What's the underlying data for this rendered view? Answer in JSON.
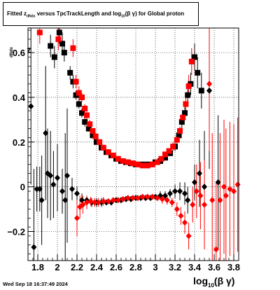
{
  "title": {
    "prefix": "Fitted  z",
    "sub1": "dNdx",
    "middle": "  versus  TpcTrackLength and log",
    "sub2": "10",
    "suffix": "(β  γ) for Global proton"
  },
  "timestamp": "Wed Sep 18 16:37:49 2024",
  "axes": {
    "ylabel_main": "z",
    "ylabel_sub": "dNdx",
    "xlabel_main": "log",
    "xlabel_sub": "10",
    "xlabel_suffix": "(β γ)"
  },
  "chart_data": {
    "type": "scatter",
    "xlim": [
      1.7,
      3.85
    ],
    "ylim": [
      -0.33,
      0.71
    ],
    "x_ticks": [
      1.8,
      2.0,
      2.2,
      2.4,
      2.6,
      2.8,
      3.0,
      3.2,
      3.4,
      3.6,
      3.8
    ],
    "x_tick_labels": [
      "1.8",
      "2",
      "2.2",
      "2.4",
      "2.6",
      "2.8",
      "3",
      "3.2",
      "3.4",
      "3.6",
      "3.8"
    ],
    "y_ticks": [
      -0.2,
      0,
      0.2,
      0.4,
      0.6
    ],
    "y_tick_labels": [
      "−0.2",
      "0",
      "0.2",
      "0.4",
      "0.6"
    ],
    "grid": true,
    "series": [
      {
        "marker": "square",
        "color": "#000000",
        "points": [
          [
            1.93,
            0.63,
            0.05
          ],
          [
            1.97,
            0.58,
            0.05
          ],
          [
            2.02,
            0.69,
            0.05
          ],
          [
            2.05,
            0.64,
            0.05
          ],
          [
            2.07,
            0.6,
            0.04
          ],
          [
            2.13,
            0.51,
            0.03
          ],
          [
            2.16,
            0.47,
            0.03
          ],
          [
            2.19,
            0.41,
            0.02
          ],
          [
            2.22,
            0.37,
            0.02
          ],
          [
            2.25,
            0.33,
            0.02
          ],
          [
            2.28,
            0.29,
            0.02
          ],
          [
            2.32,
            0.26,
            0.01
          ],
          [
            2.36,
            0.23,
            0.01
          ],
          [
            2.4,
            0.2,
            0.01
          ],
          [
            2.45,
            0.175,
            0.01
          ],
          [
            2.5,
            0.155,
            0.01
          ],
          [
            2.55,
            0.14,
            0.01
          ],
          [
            2.6,
            0.125,
            0.01
          ],
          [
            2.65,
            0.115,
            0.01
          ],
          [
            2.7,
            0.11,
            0.01
          ],
          [
            2.75,
            0.105,
            0.01
          ],
          [
            2.8,
            0.1,
            0.01
          ],
          [
            2.85,
            0.1,
            0.01
          ],
          [
            2.9,
            0.1,
            0.01
          ],
          [
            2.95,
            0.1,
            0.01
          ],
          [
            3.0,
            0.11,
            0.01
          ],
          [
            3.05,
            0.115,
            0.01
          ],
          [
            3.1,
            0.13,
            0.01
          ],
          [
            3.15,
            0.15,
            0.01
          ],
          [
            3.2,
            0.18,
            0.02
          ],
          [
            3.24,
            0.23,
            0.02
          ],
          [
            3.27,
            0.29,
            0.03
          ],
          [
            3.3,
            0.33,
            0.03
          ],
          [
            3.33,
            0.41,
            0.04
          ],
          [
            3.36,
            0.46,
            0.05
          ],
          [
            3.4,
            0.58,
            0.06
          ],
          [
            3.43,
            0.51,
            0.07
          ],
          [
            3.47,
            0.43,
            0.08
          ]
        ]
      },
      {
        "marker": "square",
        "color": "#ff0000",
        "points": [
          [
            1.82,
            0.69,
            0.05
          ],
          [
            2.01,
            0.66,
            0.05
          ],
          [
            2.16,
            0.62,
            0.04
          ],
          [
            2.19,
            0.47,
            0.03
          ],
          [
            2.22,
            0.42,
            0.03
          ],
          [
            2.25,
            0.4,
            0.02
          ],
          [
            2.28,
            0.35,
            0.02
          ],
          [
            2.3,
            0.32,
            0.02
          ],
          [
            2.33,
            0.28,
            0.02
          ],
          [
            2.36,
            0.25,
            0.01
          ],
          [
            2.39,
            0.225,
            0.01
          ],
          [
            2.43,
            0.2,
            0.01
          ],
          [
            2.47,
            0.175,
            0.01
          ],
          [
            2.52,
            0.155,
            0.01
          ],
          [
            2.57,
            0.14,
            0.01
          ],
          [
            2.62,
            0.125,
            0.01
          ],
          [
            2.67,
            0.115,
            0.01
          ],
          [
            2.72,
            0.11,
            0.01
          ],
          [
            2.77,
            0.105,
            0.01
          ],
          [
            2.82,
            0.1,
            0.01
          ],
          [
            2.87,
            0.095,
            0.01
          ],
          [
            2.92,
            0.095,
            0.01
          ],
          [
            2.97,
            0.1,
            0.01
          ],
          [
            3.02,
            0.11,
            0.01
          ],
          [
            3.06,
            0.125,
            0.01
          ],
          [
            3.1,
            0.145,
            0.01
          ],
          [
            3.14,
            0.16,
            0.01
          ],
          [
            3.18,
            0.18,
            0.02
          ],
          [
            3.22,
            0.21,
            0.02
          ],
          [
            3.25,
            0.25,
            0.02
          ],
          [
            3.28,
            0.31,
            0.03
          ],
          [
            3.31,
            0.37,
            0.04
          ],
          [
            3.34,
            0.45,
            0.05
          ],
          [
            3.37,
            0.56,
            0.06
          ]
        ]
      },
      {
        "marker": "diamond",
        "color": "#000000",
        "points": [
          [
            1.73,
            0.36,
            0.35
          ],
          [
            1.76,
            -0.27,
            0.35
          ],
          [
            1.79,
            -0.01,
            0.1
          ],
          [
            1.82,
            -0.01,
            0.1
          ],
          [
            1.84,
            -0.06,
            0.2
          ],
          [
            1.88,
            0.24,
            0.3
          ],
          [
            1.9,
            0.06,
            0.2
          ],
          [
            1.93,
            0.05,
            0.2
          ],
          [
            1.96,
            0.01,
            0.15
          ],
          [
            2.0,
            0.04,
            0.15
          ],
          [
            2.05,
            -0.02,
            0.1
          ],
          [
            2.08,
            -0.06,
            0.3
          ],
          [
            2.1,
            0.05,
            0.3
          ],
          [
            2.15,
            -0.01,
            0.05
          ],
          [
            2.2,
            -0.03,
            0.03
          ],
          [
            2.25,
            -0.06,
            0.03
          ],
          [
            2.3,
            -0.06,
            0.02
          ],
          [
            2.35,
            -0.07,
            0.02
          ],
          [
            2.4,
            -0.07,
            0.02
          ],
          [
            2.45,
            -0.07,
            0.02
          ],
          [
            2.5,
            -0.07,
            0.01
          ],
          [
            2.55,
            -0.07,
            0.01
          ],
          [
            2.6,
            -0.06,
            0.01
          ],
          [
            2.65,
            -0.06,
            0.01
          ],
          [
            2.7,
            -0.055,
            0.01
          ],
          [
            2.75,
            -0.055,
            0.01
          ],
          [
            2.8,
            -0.05,
            0.01
          ],
          [
            2.85,
            -0.05,
            0.01
          ],
          [
            2.9,
            -0.05,
            0.01
          ],
          [
            2.95,
            -0.05,
            0.01
          ],
          [
            3.0,
            -0.045,
            0.01
          ],
          [
            3.05,
            -0.04,
            0.02
          ],
          [
            3.1,
            -0.04,
            0.02
          ],
          [
            3.15,
            -0.03,
            0.02
          ],
          [
            3.2,
            -0.02,
            0.03
          ],
          [
            3.25,
            -0.02,
            0.04
          ],
          [
            3.3,
            -0.03,
            0.05
          ],
          [
            3.33,
            -0.06,
            0.06
          ],
          [
            3.4,
            0.02,
            0.08
          ],
          [
            3.45,
            0.06,
            0.15
          ],
          [
            3.5,
            0.0,
            0.25
          ],
          [
            3.55,
            0.43,
            0.35
          ],
          [
            3.64,
            0.02,
            0.3
          ]
        ]
      },
      {
        "marker": "diamond",
        "color": "#ff0000",
        "points": [
          [
            2.2,
            -0.14,
            0.08
          ],
          [
            2.23,
            -0.09,
            0.05
          ],
          [
            2.26,
            -0.08,
            0.04
          ],
          [
            2.3,
            -0.07,
            0.03
          ],
          [
            2.34,
            -0.065,
            0.02
          ],
          [
            2.38,
            -0.07,
            0.02
          ],
          [
            2.42,
            -0.07,
            0.02
          ],
          [
            2.47,
            -0.065,
            0.02
          ],
          [
            2.52,
            -0.065,
            0.01
          ],
          [
            2.57,
            -0.06,
            0.01
          ],
          [
            2.62,
            -0.06,
            0.01
          ],
          [
            2.67,
            -0.055,
            0.01
          ],
          [
            2.72,
            -0.05,
            0.01
          ],
          [
            2.77,
            -0.05,
            0.01
          ],
          [
            2.82,
            -0.05,
            0.01
          ],
          [
            2.87,
            -0.045,
            0.01
          ],
          [
            2.92,
            -0.045,
            0.01
          ],
          [
            2.97,
            -0.045,
            0.01
          ],
          [
            3.02,
            -0.05,
            0.01
          ],
          [
            3.07,
            -0.055,
            0.02
          ],
          [
            3.12,
            -0.06,
            0.02
          ],
          [
            3.17,
            -0.07,
            0.02
          ],
          [
            3.22,
            -0.1,
            0.03
          ],
          [
            3.26,
            -0.13,
            0.04
          ],
          [
            3.3,
            -0.16,
            0.05
          ],
          [
            3.34,
            -0.22,
            0.06
          ],
          [
            3.38,
            -0.08,
            0.08
          ],
          [
            3.42,
            -0.02,
            0.12
          ],
          [
            3.46,
            -0.04,
            0.15
          ],
          [
            3.5,
            -0.08,
            0.2
          ],
          [
            3.55,
            0.46,
            0.3
          ],
          [
            3.58,
            -0.06,
            0.3
          ],
          [
            3.62,
            -0.28,
            0.3
          ],
          [
            3.66,
            -0.06,
            0.3
          ],
          [
            3.7,
            0.0,
            0.3
          ],
          [
            3.72,
            -0.04,
            0.3
          ],
          [
            3.76,
            -0.01,
            0.3
          ],
          [
            3.8,
            -0.02,
            0.3
          ],
          [
            3.84,
            0.01,
            0.3
          ]
        ]
      }
    ]
  }
}
